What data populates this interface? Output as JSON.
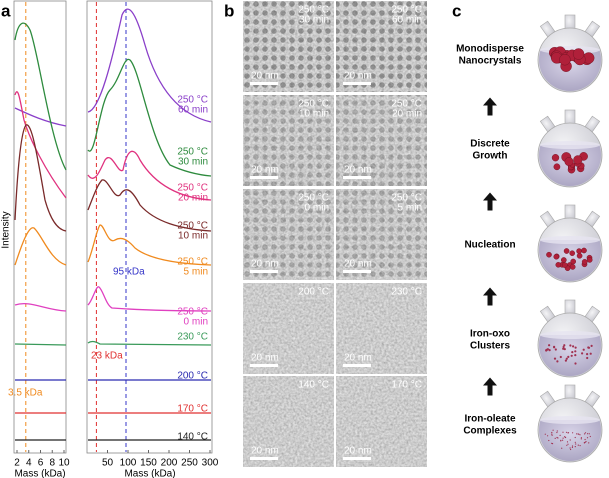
{
  "panel_a": {
    "label": "a",
    "y_axis_label": "Intensity",
    "x_axis_label_left": "Mass (kDa)",
    "x_axis_label_right": "Mass (kDa)",
    "xticks_left": [
      2,
      4,
      6,
      8,
      10
    ],
    "xticks_right": [
      50,
      100,
      150,
      200,
      250,
      300
    ],
    "annotations": [
      "3.5 kDa",
      "23 kDa",
      "95 kDa"
    ],
    "traces": [
      [
        "250 °C",
        "60 min"
      ],
      [
        "250 °C",
        "30 min"
      ],
      [
        "250 °C",
        "20 min"
      ],
      [
        "250 °C",
        "10 min"
      ],
      [
        "250 °C",
        "5 min"
      ],
      [
        "250 °C",
        "0 min"
      ],
      [
        "230 °C"
      ],
      [
        "200 °C"
      ],
      [
        "170 °C"
      ],
      [
        "140 °C"
      ]
    ]
  },
  "panel_b": {
    "label": "b",
    "images": [
      {
        "condition": [
          "250 °C",
          "30 min"
        ],
        "scale_bar": "20 nm"
      },
      {
        "condition": [
          "250 °C",
          "60 min"
        ],
        "scale_bar": "20 nm"
      },
      {
        "condition": [
          "250 °C",
          "10 min"
        ],
        "scale_bar": "20 nm"
      },
      {
        "condition": [
          "250 °C",
          "20 min"
        ],
        "scale_bar": "20 nm"
      },
      {
        "condition": [
          "250 °C",
          "0 min"
        ],
        "scale_bar": "20 nm"
      },
      {
        "condition": [
          "250 °C",
          "5 min"
        ],
        "scale_bar": "20 nm"
      },
      {
        "condition": [
          "200 °C"
        ],
        "scale_bar": "20 nm"
      },
      {
        "condition": [
          "230 °C"
        ],
        "scale_bar": "20 nm"
      },
      {
        "condition": [
          "140 °C"
        ],
        "scale_bar": "20 nm"
      },
      {
        "condition": [
          "170 °C"
        ],
        "scale_bar": "20 nm"
      }
    ]
  },
  "panel_c": {
    "label": "c",
    "stages": [
      [
        "Monodisperse",
        "Nanocrystals"
      ],
      [
        "Discrete",
        "Growth"
      ],
      [
        "Nucleation"
      ],
      [
        "Iron-oxo",
        "Clusters"
      ],
      [
        "Iron-oleate",
        "Complexes"
      ]
    ]
  }
}
